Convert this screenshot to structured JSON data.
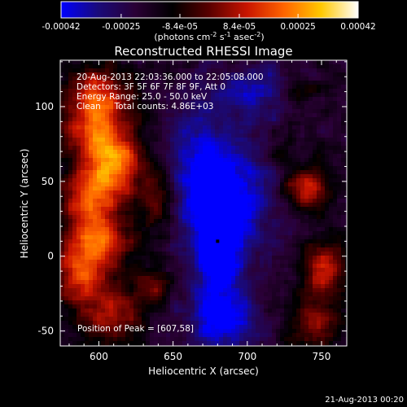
{
  "colorbar": {
    "ticks": [
      "-0.00042",
      "-0.00025",
      "-8.4e-05",
      "8.4e-05",
      "0.00025",
      "0.00042"
    ],
    "values": [
      -0.00042,
      -0.00025,
      -8.4e-05,
      8.4e-05,
      0.00025,
      0.00042
    ],
    "units_main": "(photons cm",
    "units_sup1": "-2",
    "units_mid": " s",
    "units_sup2": "-1",
    "units_end": " asec",
    "units_sup3": "-2",
    "units_close": ")",
    "stops": [
      "#0000ff",
      "#1a0a7a",
      "#2a0035",
      "#000000",
      "#5a0000",
      "#c81400",
      "#ff6400",
      "#ffc800",
      "#ffffff"
    ]
  },
  "chart_data": {
    "type": "heatmap",
    "title": "Reconstructed RHESSI Image",
    "xlabel": "Heliocentric X (arcsec)",
    "ylabel": "Heliocentric Y (arcsec)",
    "xlim": [
      574,
      767
    ],
    "ylim": [
      -60,
      131
    ],
    "xticks": [
      600,
      650,
      700,
      750
    ],
    "yticks": [
      -50,
      0,
      50,
      100
    ],
    "peak": [
      607,
      58
    ],
    "minimum_marker": [
      680,
      10
    ],
    "annotations": [
      "20-Aug-2013 22:03:36.000 to 22:05:08.000",
      "Detectors: 3F 5F 6F 7F 8F 9F, Att 0",
      "Energy Range: 25.0 - 50.0 keV",
      "Clean     Total counts: 4.86E+03",
      "Position of Peak = [607,58]"
    ],
    "sources": [
      {
        "x": 600,
        "y": 110,
        "sx": 14,
        "sy": 12,
        "amp": 0.65
      },
      {
        "x": 598,
        "y": 85,
        "sx": 16,
        "sy": 14,
        "amp": 0.75
      },
      {
        "x": 610,
        "y": 60,
        "sx": 14,
        "sy": 14,
        "amp": 1.0
      },
      {
        "x": 592,
        "y": 38,
        "sx": 14,
        "sy": 12,
        "amp": 0.7
      },
      {
        "x": 600,
        "y": 12,
        "sx": 16,
        "sy": 12,
        "amp": 0.78
      },
      {
        "x": 588,
        "y": -12,
        "sx": 14,
        "sy": 14,
        "amp": 0.72
      },
      {
        "x": 608,
        "y": -40,
        "sx": 14,
        "sy": 12,
        "amp": 0.6
      },
      {
        "x": 640,
        "y": 40,
        "sx": 8,
        "sy": 14,
        "amp": 0.45
      },
      {
        "x": 637,
        "y": -20,
        "sx": 9,
        "sy": 9,
        "amp": 0.4
      },
      {
        "x": 740,
        "y": 45,
        "sx": 11,
        "sy": 10,
        "amp": 0.7
      },
      {
        "x": 752,
        "y": -8,
        "sx": 10,
        "sy": 12,
        "amp": 0.75
      },
      {
        "x": 745,
        "y": -45,
        "sx": 12,
        "sy": 12,
        "amp": 0.5
      },
      {
        "x": 722,
        "y": 70,
        "sx": 7,
        "sy": 7,
        "amp": 0.3
      },
      {
        "x": 735,
        "y": 110,
        "sx": 10,
        "sy": 6,
        "amp": 0.3
      },
      {
        "x": 680,
        "y": 5,
        "sx": 12,
        "sy": 35,
        "amp": -0.75
      },
      {
        "x": 665,
        "y": 60,
        "sx": 16,
        "sy": 30,
        "amp": -0.45
      },
      {
        "x": 700,
        "y": 40,
        "sx": 18,
        "sy": 30,
        "amp": -0.4
      },
      {
        "x": 685,
        "y": -45,
        "sx": 18,
        "sy": 12,
        "amp": -0.45
      },
      {
        "x": 705,
        "y": 110,
        "sx": 20,
        "sy": 12,
        "amp": -0.4
      }
    ]
  },
  "footer": {
    "timestamp": "21-Aug-2013 00:20"
  }
}
